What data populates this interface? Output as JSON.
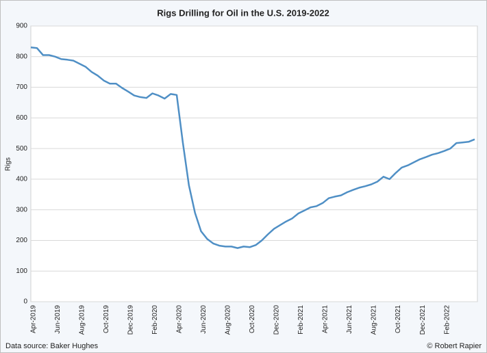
{
  "chart_data": {
    "type": "line",
    "title": "Rigs Drilling for Oil in the U.S. 2019-2022",
    "y_label": "Rigs",
    "source": "Data source: Baker Hughes",
    "credit": "© Robert Rapier",
    "categories": [
      "Apr-2019",
      null,
      null,
      null,
      "Jun-2019",
      null,
      null,
      null,
      "Aug-2019",
      null,
      null,
      null,
      "Oct-2019",
      null,
      null,
      null,
      "Dec-2019",
      null,
      null,
      null,
      "Feb-2020",
      null,
      null,
      null,
      "Apr-2020",
      null,
      null,
      null,
      "Jun-2020",
      null,
      null,
      null,
      "Aug-2020",
      null,
      null,
      null,
      "Oct-2020",
      null,
      null,
      null,
      "Dec-2020",
      null,
      null,
      null,
      "Feb-2021",
      null,
      null,
      null,
      "Apr-2021",
      null,
      null,
      null,
      "Jun-2021",
      null,
      null,
      null,
      "Aug-2021",
      null,
      null,
      null,
      "Oct-2021",
      null,
      null,
      null,
      "Dec-2021",
      null,
      null,
      null,
      "Feb-2022",
      null,
      null,
      null,
      null,
      null
    ],
    "series": [
      {
        "name": "Rigs",
        "color": "#4f8fc5",
        "values": [
          830,
          828,
          805,
          805,
          800,
          792,
          790,
          787,
          777,
          767,
          750,
          738,
          722,
          712,
          712,
          698,
          686,
          673,
          668,
          665,
          680,
          673,
          663,
          678,
          675,
          520,
          380,
          290,
          230,
          205,
          190,
          183,
          180,
          180,
          175,
          180,
          178,
          185,
          200,
          220,
          238,
          250,
          262,
          272,
          288,
          298,
          308,
          312,
          322,
          338,
          343,
          347,
          357,
          365,
          372,
          377,
          383,
          392,
          408,
          400,
          420,
          438,
          445,
          455,
          465,
          472,
          480,
          485,
          492,
          500,
          518,
          520,
          522,
          530
        ]
      }
    ],
    "ylim": [
      0,
      900
    ],
    "yticks": [
      0,
      100,
      200,
      300,
      400,
      500,
      600,
      700,
      800,
      900
    ],
    "grid": true
  }
}
